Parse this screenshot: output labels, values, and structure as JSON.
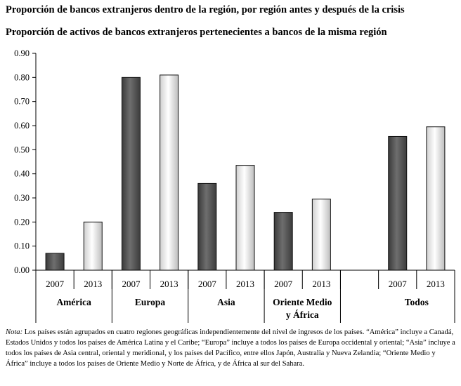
{
  "titles": {
    "line1": "Proporción de bancos extranjeros dentro de la región, por región antes y después de la crisis",
    "line2": "Proporción de activos de bancos extranjeros pertenecientes a bancos de la misma región"
  },
  "note": {
    "label": "Nota:",
    "text": "Los países están agrupados en cuatro regiones geográficas independientemente del nivel de ingresos de los países. “América” incluye a Canadá, Estados Unidos y todos los países de América Latina y el Caribe; “Europa” incluye a todos los países de Europa occidental y oriental; “Asia” incluye a todos los países de Asia central, oriental y meridional, y los países del Pacífico, entre ellos Japón, Australia y Nueva Zelandia; “Oriente Medio y África” incluye a todos los países de Oriente Medio y Norte de África, y de África al sur del Sahara."
  },
  "chart_data": {
    "type": "bar",
    "title": "",
    "xlabel": "",
    "ylabel": "",
    "ylim": [
      0,
      0.9
    ],
    "yticks": [
      "0.00",
      "0.10",
      "0.20",
      "0.30",
      "0.40",
      "0.50",
      "0.60",
      "0.70",
      "0.80",
      "0.90"
    ],
    "groups": [
      {
        "label": "América",
        "bars": [
          {
            "year": "2007",
            "value": 0.07
          },
          {
            "year": "2013",
            "value": 0.2
          }
        ]
      },
      {
        "label": "Europa",
        "bars": [
          {
            "year": "2007",
            "value": 0.8
          },
          {
            "year": "2013",
            "value": 0.81
          }
        ]
      },
      {
        "label": "Asia",
        "bars": [
          {
            "year": "2007",
            "value": 0.36
          },
          {
            "year": "2013",
            "value": 0.435
          }
        ]
      },
      {
        "label": "Oriente Medio y África",
        "bars": [
          {
            "year": "2007",
            "value": 0.24
          },
          {
            "year": "2013",
            "value": 0.295
          }
        ]
      },
      {
        "label": "Todos",
        "bars": [
          {
            "year": "2007",
            "value": 0.555
          },
          {
            "year": "2013",
            "value": 0.595
          }
        ]
      }
    ],
    "colors": {
      "2007": "#555555",
      "2013": "#f2f2f2"
    },
    "grid": false,
    "legend": "none"
  }
}
